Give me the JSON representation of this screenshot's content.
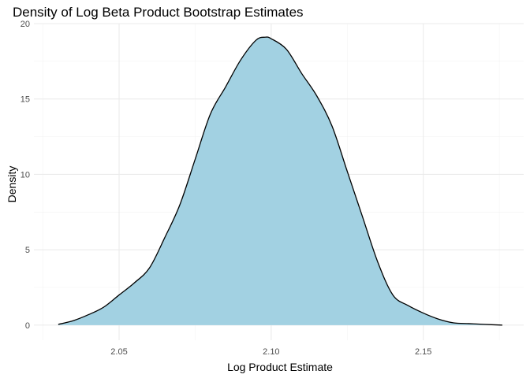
{
  "chart_data": {
    "type": "area",
    "title": "Density of Log Beta Product Bootstrap Estimates",
    "xlabel": "Log Product Estimate",
    "ylabel": "Density",
    "xlim": [
      2.022,
      2.183
    ],
    "ylim": [
      -1,
      20
    ],
    "x_ticks": [
      2.05,
      2.1,
      2.15
    ],
    "x_tick_labels": [
      "2.05",
      "2.10",
      "2.15"
    ],
    "y_ticks": [
      0,
      5,
      10,
      15,
      20
    ],
    "y_tick_labels": [
      "0",
      "5",
      "10",
      "15",
      "20"
    ],
    "grid": true,
    "legend": "none",
    "fill_color": "#a2d1e2",
    "line_color": "#000000",
    "series": [
      {
        "x": [
          2.03,
          2.035,
          2.04,
          2.045,
          2.05,
          2.055,
          2.06,
          2.065,
          2.07,
          2.075,
          2.08,
          2.085,
          2.09,
          2.095,
          2.098,
          2.1,
          2.105,
          2.11,
          2.115,
          2.12,
          2.125,
          2.13,
          2.135,
          2.14,
          2.145,
          2.15,
          2.155,
          2.16,
          2.165,
          2.17,
          2.176
        ],
        "y": [
          0.05,
          0.3,
          0.7,
          1.2,
          2.0,
          2.8,
          3.8,
          5.8,
          8.0,
          11.0,
          14.0,
          15.8,
          17.6,
          18.9,
          19.1,
          19.0,
          18.3,
          16.7,
          15.2,
          13.2,
          10.2,
          7.2,
          4.2,
          2.0,
          1.3,
          0.8,
          0.4,
          0.15,
          0.1,
          0.05,
          0.0
        ]
      }
    ]
  }
}
